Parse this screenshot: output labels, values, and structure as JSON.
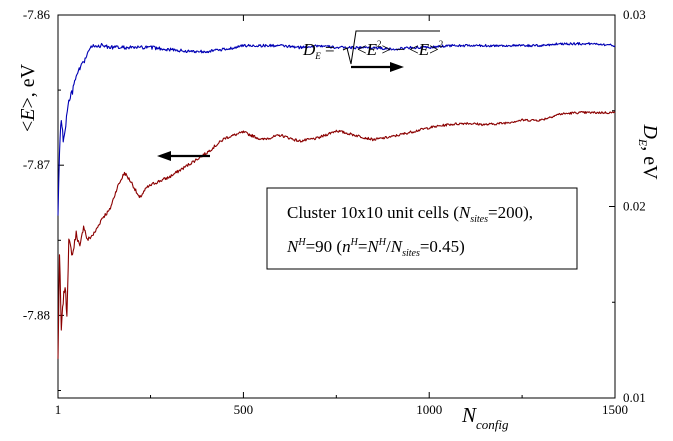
{
  "chart_data": {
    "type": "line",
    "x_axis": {
      "label_main": "N",
      "label_sub": "config",
      "ticks": [
        {
          "value": 1,
          "label": "1"
        },
        {
          "value": 500,
          "label": "500"
        },
        {
          "value": 1000,
          "label": "1000"
        },
        {
          "value": 1500,
          "label": "1500"
        }
      ],
      "range": [
        1,
        1500
      ]
    },
    "y_left": {
      "label_pre": "<",
      "label_var": "E",
      "label_post": ">, eV",
      "ticks": [
        {
          "value": -7.86,
          "label": "-7.86"
        },
        {
          "value": -7.87,
          "label": "-7.87"
        },
        {
          "value": -7.88,
          "label": "-7.88"
        }
      ],
      "range": [
        -7.8855,
        -7.86
      ]
    },
    "y_right": {
      "label_var": "D",
      "label_sub": "E",
      "label_post": ", eV",
      "ticks": [
        {
          "value": 0.03,
          "label": "0.03"
        },
        {
          "value": 0.02,
          "label": "0.02"
        },
        {
          "value": 0.01,
          "label": "0.01"
        }
      ],
      "range": [
        0.01,
        0.03
      ]
    },
    "formula": "D_E = sqrt(<E^2> - <E>^2)",
    "annotation_lines": [
      "Cluster 10x10 unit cells (N_sites=200),",
      "N^H=90 (n^H=N^H/N_sites=0.45)"
    ],
    "colors": {
      "energy": "#8b0000",
      "std": "#0000b4"
    },
    "series": [
      {
        "key": "energy",
        "axis": "left",
        "color": "#8b0000",
        "points": [
          [
            1,
            -7.883
          ],
          [
            5,
            -7.876
          ],
          [
            10,
            -7.881
          ],
          [
            15,
            -7.879
          ],
          [
            20,
            -7.878
          ],
          [
            25,
            -7.88
          ],
          [
            30,
            -7.875
          ],
          [
            40,
            -7.876
          ],
          [
            50,
            -7.8745
          ],
          [
            60,
            -7.8755
          ],
          [
            70,
            -7.874
          ],
          [
            80,
            -7.875
          ],
          [
            100,
            -7.8745
          ],
          [
            120,
            -7.8735
          ],
          [
            140,
            -7.873
          ],
          [
            160,
            -7.8715
          ],
          [
            180,
            -7.8705
          ],
          [
            200,
            -7.8712
          ],
          [
            220,
            -7.8722
          ],
          [
            240,
            -7.8715
          ],
          [
            260,
            -7.8712
          ],
          [
            300,
            -7.8708
          ],
          [
            350,
            -7.87
          ],
          [
            400,
            -7.8692
          ],
          [
            450,
            -7.8682
          ],
          [
            500,
            -7.8678
          ],
          [
            550,
            -7.8683
          ],
          [
            600,
            -7.868
          ],
          [
            650,
            -7.8684
          ],
          [
            700,
            -7.8682
          ],
          [
            750,
            -7.8677
          ],
          [
            800,
            -7.868
          ],
          [
            850,
            -7.8683
          ],
          [
            900,
            -7.8681
          ],
          [
            950,
            -7.8678
          ],
          [
            1000,
            -7.8675
          ],
          [
            1050,
            -7.8673
          ],
          [
            1100,
            -7.8672
          ],
          [
            1150,
            -7.8673
          ],
          [
            1200,
            -7.8672
          ],
          [
            1250,
            -7.867
          ],
          [
            1300,
            -7.867
          ],
          [
            1350,
            -7.8666
          ],
          [
            1400,
            -7.8665
          ],
          [
            1450,
            -7.8665
          ],
          [
            1500,
            -7.8665
          ]
        ]
      },
      {
        "key": "std",
        "axis": "right",
        "color": "#0000b4",
        "points": [
          [
            1,
            0.0195
          ],
          [
            5,
            0.023
          ],
          [
            10,
            0.0245
          ],
          [
            15,
            0.0235
          ],
          [
            20,
            0.024
          ],
          [
            30,
            0.0255
          ],
          [
            40,
            0.026
          ],
          [
            50,
            0.0268
          ],
          [
            60,
            0.0272
          ],
          [
            70,
            0.0275
          ],
          [
            80,
            0.028
          ],
          [
            90,
            0.0283
          ],
          [
            100,
            0.0284
          ],
          [
            120,
            0.0284
          ],
          [
            150,
            0.0283
          ],
          [
            200,
            0.0283
          ],
          [
            250,
            0.0283
          ],
          [
            300,
            0.0282
          ],
          [
            350,
            0.0281
          ],
          [
            400,
            0.0281
          ],
          [
            450,
            0.0282
          ],
          [
            500,
            0.0284
          ],
          [
            550,
            0.0284
          ],
          [
            600,
            0.0284
          ],
          [
            650,
            0.0283
          ],
          [
            700,
            0.0284
          ],
          [
            750,
            0.0283
          ],
          [
            800,
            0.0283
          ],
          [
            850,
            0.0283
          ],
          [
            900,
            0.0282
          ],
          [
            950,
            0.0283
          ],
          [
            1000,
            0.0283
          ],
          [
            1050,
            0.0284
          ],
          [
            1100,
            0.0284
          ],
          [
            1150,
            0.0284
          ],
          [
            1200,
            0.0284
          ],
          [
            1250,
            0.0284
          ],
          [
            1300,
            0.0284
          ],
          [
            1350,
            0.0285
          ],
          [
            1400,
            0.0285
          ],
          [
            1450,
            0.0285
          ],
          [
            1500,
            0.0284
          ]
        ]
      }
    ]
  }
}
